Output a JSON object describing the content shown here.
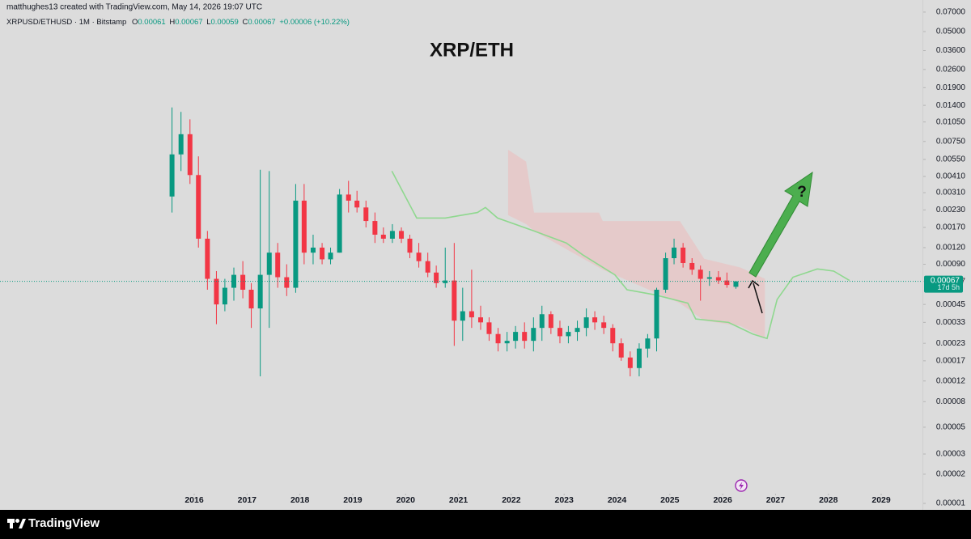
{
  "chart_data": {
    "type": "candlestick",
    "title": "XRP/ETH",
    "attribution": "matthughes13 created with TradingView.com, May 14, 2026 19:07 UTC",
    "symbol": "XRPUSD/ETHUSD · 1M · Bitstamp",
    "ohlc_letters": [
      "O",
      "H",
      "L",
      "C"
    ],
    "change": "+0.00006 (+10.22%)",
    "countdown": "17d 5h",
    "annotation": "?",
    "brand": "TradingView",
    "log_scale": true,
    "up_color": "#089981",
    "down_color": "#f23645",
    "xlim": [
      2012.325,
      2029.78
    ],
    "xticks": [
      2016,
      2017,
      2018,
      2019,
      2020,
      2021,
      2022,
      2023,
      2024,
      2025,
      2026,
      2027,
      2028,
      2029
    ],
    "ylim": [
      1.45e-05,
      0.075
    ],
    "yticks": [
      {
        "value": 0.07,
        "label": "0.07000"
      },
      {
        "value": 0.05,
        "label": "0.05000"
      },
      {
        "value": 0.036,
        "label": "0.03600"
      },
      {
        "value": 0.026,
        "label": "0.02600"
      },
      {
        "value": 0.019,
        "label": "0.01900"
      },
      {
        "value": 0.014,
        "label": "0.01400"
      },
      {
        "value": 0.0105,
        "label": "0.01050"
      },
      {
        "value": 0.0075,
        "label": "0.00750"
      },
      {
        "value": 0.0055,
        "label": "0.00550"
      },
      {
        "value": 0.0041,
        "label": "0.00410"
      },
      {
        "value": 0.0031,
        "label": "0.00310"
      },
      {
        "value": 0.0023,
        "label": "0.00230"
      },
      {
        "value": 0.0017,
        "label": "0.00170"
      },
      {
        "value": 0.0012,
        "label": "0.00120"
      },
      {
        "value": 0.0009,
        "label": "0.00090"
      },
      0.00067,
      0.00045,
      0.00033,
      0.00023,
      0.00017,
      0.00012,
      {
        "value": 8.4e-05,
        "label": "0.00008"
      },
      {
        "value": 5.4e-05,
        "label": "0.00005"
      },
      {
        "value": 3.4e-05,
        "label": "0.00003"
      },
      {
        "value": 2.4e-05,
        "label": "0.00002"
      },
      {
        "value": 1.45e-05,
        "label": "0.00001"
      }
    ],
    "candles": {
      "x": [
        2015.58,
        2015.75,
        2015.92,
        2016.08,
        2016.25,
        2016.42,
        2016.58,
        2016.75,
        2016.92,
        2017.08,
        2017.25,
        2017.42,
        2017.58,
        2017.75,
        2017.92,
        2018.08,
        2018.25,
        2018.42,
        2018.58,
        2018.75,
        2018.92,
        2019.08,
        2019.25,
        2019.42,
        2019.58,
        2019.75,
        2019.92,
        2020.08,
        2020.25,
        2020.42,
        2020.58,
        2020.75,
        2020.92,
        2021.08,
        2021.25,
        2021.42,
        2021.58,
        2021.75,
        2021.92,
        2022.08,
        2022.25,
        2022.42,
        2022.58,
        2022.75,
        2022.92,
        2023.08,
        2023.25,
        2023.42,
        2023.58,
        2023.75,
        2023.92,
        2024.08,
        2024.25,
        2024.42,
        2024.58,
        2024.75,
        2024.92,
        2025.08,
        2025.25,
        2025.42,
        2025.58,
        2025.75,
        2025.92,
        2026.08,
        2026.25
      ],
      "open": [
        0.0029,
        0.006,
        0.0085,
        0.0042,
        0.0014,
        0.0007,
        0.00045,
        0.0006,
        0.00075,
        0.00058,
        0.00042,
        0.00075,
        0.0011,
        0.00072,
        0.0006,
        0.0027,
        0.0011,
        0.0012,
        0.00098,
        0.0011,
        0.003,
        0.0027,
        0.0024,
        0.0019,
        0.0015,
        0.0014,
        0.0016,
        0.0014,
        0.0011,
        0.00095,
        0.00078,
        0.00065,
        0.00068,
        0.00034,
        0.0004,
        0.00036,
        0.00033,
        0.00027,
        0.00023,
        0.00024,
        0.00028,
        0.00024,
        0.0003,
        0.00038,
        0.0003,
        0.00026,
        0.00028,
        0.0003,
        0.00036,
        0.00033,
        0.0003,
        0.00023,
        0.00018,
        0.00015,
        0.00021,
        0.00025,
        0.00058,
        0.001,
        0.0012,
        0.00092,
        0.00082,
        0.0007,
        0.00072,
        0.00068,
        0.00061
      ],
      "high": [
        0.0135,
        0.0125,
        0.011,
        0.0058,
        0.0016,
        0.0008,
        0.0007,
        0.00085,
        0.00095,
        0.00065,
        0.0046,
        0.0045,
        0.0013,
        0.0009,
        0.0036,
        0.0036,
        0.0015,
        0.0013,
        0.0012,
        0.0033,
        0.0038,
        0.0032,
        0.0027,
        0.0022,
        0.0017,
        0.0018,
        0.0017,
        0.0015,
        0.0013,
        0.0011,
        0.00088,
        0.0012,
        0.0013,
        0.0006,
        0.00082,
        0.00044,
        0.00036,
        0.0003,
        0.00028,
        0.00031,
        0.00033,
        0.00036,
        0.00044,
        0.0004,
        0.00034,
        0.00031,
        0.00034,
        0.00042,
        0.0004,
        0.00037,
        0.00032,
        0.00025,
        0.0002,
        0.00023,
        0.00027,
        0.0006,
        0.0011,
        0.0014,
        0.0013,
        0.001,
        0.00088,
        0.0008,
        0.0008,
        0.00078,
        0.00067
      ],
      "low": [
        0.0022,
        0.0045,
        0.0036,
        0.0012,
        0.00058,
        0.00032,
        0.0004,
        0.00048,
        0.0005,
        0.0003,
        0.00013,
        0.0003,
        0.0006,
        0.00052,
        0.00055,
        0.0009,
        0.0009,
        0.0009,
        0.0009,
        0.0011,
        0.0022,
        0.0022,
        0.0017,
        0.0013,
        0.0013,
        0.0013,
        0.0013,
        0.001,
        0.00085,
        0.00072,
        0.0006,
        0.0006,
        0.00022,
        0.00024,
        0.0003,
        0.00029,
        0.00024,
        0.0002,
        0.0002,
        0.00021,
        0.00021,
        0.0002,
        0.00024,
        0.00027,
        0.00023,
        0.00023,
        0.00024,
        0.00026,
        0.00029,
        0.00027,
        0.0002,
        0.00017,
        0.00013,
        0.00013,
        0.00018,
        0.0002,
        0.00055,
        0.0009,
        0.00085,
        0.00075,
        0.00048,
        0.00062,
        0.00064,
        0.0006,
        0.00059
      ],
      "close": [
        0.006,
        0.0085,
        0.0042,
        0.0014,
        0.0007,
        0.00045,
        0.0006,
        0.00075,
        0.00058,
        0.00042,
        0.00075,
        0.0011,
        0.00072,
        0.0006,
        0.0027,
        0.0011,
        0.0012,
        0.00098,
        0.0011,
        0.003,
        0.0027,
        0.0024,
        0.0019,
        0.0015,
        0.0014,
        0.0016,
        0.0014,
        0.0011,
        0.00095,
        0.00078,
        0.00065,
        0.00068,
        0.00034,
        0.0004,
        0.00036,
        0.00033,
        0.00027,
        0.00023,
        0.00024,
        0.00028,
        0.00024,
        0.0003,
        0.00038,
        0.0003,
        0.00026,
        0.00028,
        0.0003,
        0.00036,
        0.00033,
        0.0003,
        0.00023,
        0.00018,
        0.00015,
        0.00021,
        0.00025,
        0.00058,
        0.001,
        0.0012,
        0.00092,
        0.00082,
        0.0007,
        0.00072,
        0.00068,
        0.00063,
        0.00067
      ]
    },
    "cloud": {
      "color": "#e8c4c4",
      "x": [
        2021.94,
        2022.28,
        2022.43,
        2023.66,
        2023.73,
        2025.19,
        2025.65,
        2026.34,
        2026.8
      ],
      "upper": [
        0.0065,
        0.0053,
        0.0022,
        0.0022,
        0.0019,
        0.0019,
        0.00099,
        0.00085,
        0.0007
      ],
      "lower": [
        0.0021,
        0.0018,
        0.0016,
        0.00085,
        0.00082,
        0.00046,
        0.00034,
        0.00031,
        0.00025
      ]
    },
    "line": {
      "color": "#8fd88f",
      "x": [
        2019.74,
        2020.21,
        2020.75,
        2021.36,
        2021.51,
        2021.74,
        2022.43,
        2023.04,
        2023.35,
        2023.96,
        2024.19,
        2024.73,
        2025.34,
        2025.49,
        2026.11,
        2026.57,
        2026.84,
        2027.03,
        2027.33,
        2027.79,
        2028.1,
        2028.4
      ],
      "values": [
        0.0045,
        0.002,
        0.002,
        0.0022,
        0.0024,
        0.002,
        0.0016,
        0.0013,
        0.00106,
        0.00075,
        0.00058,
        0.00053,
        0.00046,
        0.00035,
        0.00033,
        0.00027,
        0.00025,
        0.00049,
        0.00072,
        0.00083,
        0.0008,
        0.00068
      ]
    }
  }
}
